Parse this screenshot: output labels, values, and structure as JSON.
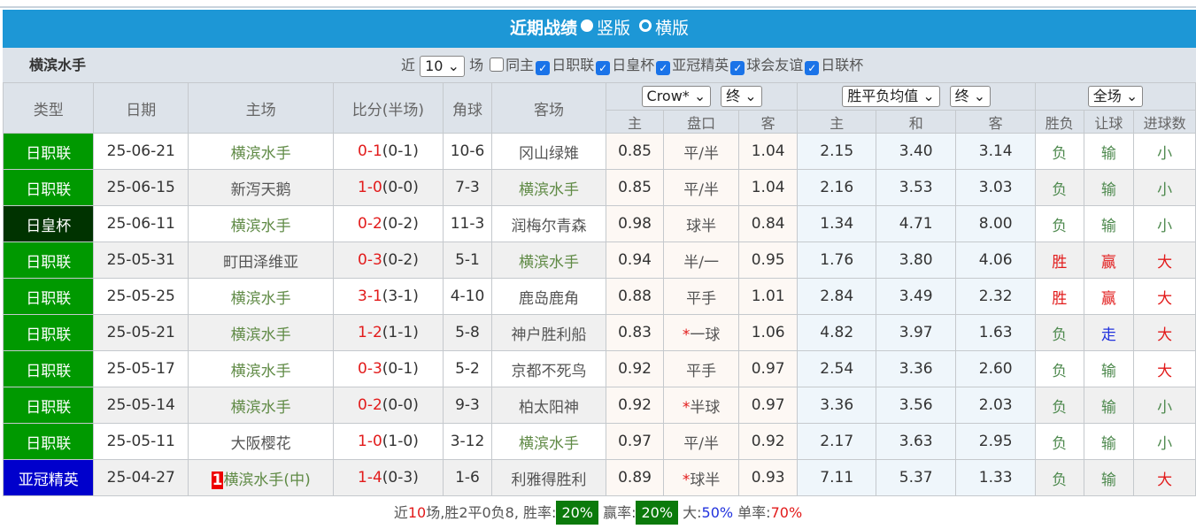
{
  "title": {
    "label": "近期战绩",
    "opt1": "竖版",
    "opt2": "横版",
    "selected": "竖版"
  },
  "filter": {
    "team": "横滨水手",
    "near": "近",
    "count": "10",
    "games": "场",
    "options": [
      {
        "label": "同主",
        "checked": false
      },
      {
        "label": "日职联",
        "checked": true
      },
      {
        "label": "日皇杯",
        "checked": true
      },
      {
        "label": "亚冠精英",
        "checked": true
      },
      {
        "label": "球会友谊",
        "checked": true
      },
      {
        "label": "日联杯",
        "checked": true
      }
    ]
  },
  "headers": {
    "type": "类型",
    "date": "日期",
    "home": "主场",
    "score": "比分(半场)",
    "corner": "角球",
    "away": "客场",
    "company": "Crow*",
    "odds_time": "终",
    "avg": "胜平负均值",
    "avg_time": "终",
    "period": "全场",
    "sub": [
      "主",
      "盘口",
      "客",
      "主",
      "和",
      "客",
      "胜负",
      "让球",
      "进球数"
    ]
  },
  "colors": {
    "league": "#009900",
    "cup": "#003300",
    "acl": "#0000cc",
    "header": "#1d97d6"
  },
  "rows": [
    {
      "type": "日职联",
      "color": "#009900",
      "date": "25-06-21",
      "home": "横滨水手",
      "score": "0-1",
      "half": "(0-1)",
      "corner": "10-6",
      "away": "冈山绿雉",
      "oh": "0.85",
      "line": "平/半",
      "oa": "1.04",
      "w": "2.15",
      "d": "3.40",
      "l": "3.14",
      "r1": "负",
      "r2": "输",
      "r3": "小",
      "hl": "home"
    },
    {
      "type": "日职联",
      "color": "#009900",
      "date": "25-06-15",
      "home": "新泻天鹅",
      "score": "1-0",
      "half": "(0-0)",
      "corner": "7-3",
      "away": "横滨水手",
      "oh": "0.85",
      "line": "平/半",
      "oa": "1.04",
      "w": "2.16",
      "d": "3.53",
      "l": "3.03",
      "r1": "负",
      "r2": "输",
      "r3": "小",
      "hl": "away"
    },
    {
      "type": "日皇杯",
      "color": "#003300",
      "date": "25-06-11",
      "home": "横滨水手",
      "score": "0-2",
      "half": "(0-2)",
      "corner": "11-3",
      "away": "润梅尔青森",
      "oh": "0.98",
      "line": "球半",
      "oa": "0.84",
      "w": "1.34",
      "d": "4.71",
      "l": "8.00",
      "r1": "负",
      "r2": "输",
      "r3": "小",
      "hl": "home"
    },
    {
      "type": "日职联",
      "color": "#009900",
      "date": "25-05-31",
      "home": "町田泽维亚",
      "score": "0-3",
      "half": "(0-2)",
      "corner": "5-1",
      "away": "横滨水手",
      "oh": "0.94",
      "line": "半/一",
      "oa": "0.95",
      "w": "1.76",
      "d": "3.80",
      "l": "4.06",
      "r1": "胜",
      "r2": "赢",
      "r3": "大",
      "hl": "away"
    },
    {
      "type": "日职联",
      "color": "#009900",
      "date": "25-05-25",
      "home": "横滨水手",
      "score": "3-1",
      "half": "(3-1)",
      "corner": "4-10",
      "away": "鹿岛鹿角",
      "oh": "0.88",
      "line": "平手",
      "oa": "1.01",
      "w": "2.84",
      "d": "3.49",
      "l": "2.32",
      "r1": "胜",
      "r2": "赢",
      "r3": "大",
      "hl": "home"
    },
    {
      "type": "日职联",
      "color": "#009900",
      "date": "25-05-21",
      "home": "横滨水手",
      "score": "1-2",
      "half": "(1-1)",
      "corner": "5-8",
      "away": "神户胜利船",
      "oh": "0.83",
      "star": "*",
      "line": "一球",
      "oa": "1.06",
      "w": "4.82",
      "d": "3.97",
      "l": "1.63",
      "r1": "负",
      "r2": "走",
      "r3": "大",
      "hl": "home"
    },
    {
      "type": "日职联",
      "color": "#009900",
      "date": "25-05-17",
      "home": "横滨水手",
      "score": "0-3",
      "half": "(0-1)",
      "corner": "5-2",
      "away": "京都不死鸟",
      "oh": "0.92",
      "line": "平手",
      "oa": "0.97",
      "w": "2.54",
      "d": "3.36",
      "l": "2.60",
      "r1": "负",
      "r2": "输",
      "r3": "大",
      "hl": "home"
    },
    {
      "type": "日职联",
      "color": "#009900",
      "date": "25-05-14",
      "home": "横滨水手",
      "score": "0-2",
      "half": "(0-0)",
      "corner": "9-3",
      "away": "柏太阳神",
      "oh": "0.92",
      "star": "*",
      "line": "半球",
      "oa": "0.97",
      "w": "3.36",
      "d": "3.56",
      "l": "2.03",
      "r1": "负",
      "r2": "输",
      "r3": "小",
      "hl": "home"
    },
    {
      "type": "日职联",
      "color": "#009900",
      "date": "25-05-11",
      "home": "大阪樱花",
      "score": "1-0",
      "half": "(1-0)",
      "corner": "3-12",
      "away": "横滨水手",
      "oh": "0.97",
      "line": "平/半",
      "oa": "0.92",
      "w": "2.17",
      "d": "3.63",
      "l": "2.95",
      "r1": "负",
      "r2": "输",
      "r3": "小",
      "hl": "away"
    },
    {
      "type": "亚冠精英",
      "color": "#0000cc",
      "date": "25-04-27",
      "rank": "1",
      "home": "横滨水手(中)",
      "score": "1-4",
      "half": "(0-3)",
      "corner": "1-6",
      "away": "利雅得胜利",
      "oh": "0.89",
      "star": "*",
      "line": "球半",
      "oa": "0.93",
      "w": "7.11",
      "d": "5.37",
      "l": "1.33",
      "r1": "负",
      "r2": "输",
      "r3": "大",
      "hl": "home"
    }
  ],
  "footer": {
    "pre": "近",
    "n": "10",
    "mid": "场,胜2平0负8, 胜率:",
    "win_rate": "20%",
    "ying": " 赢率:",
    "ying_rate": "20%",
    "big": " 大:",
    "big_rate": "50%",
    "single": " 单率:",
    "single_rate": "70%"
  }
}
